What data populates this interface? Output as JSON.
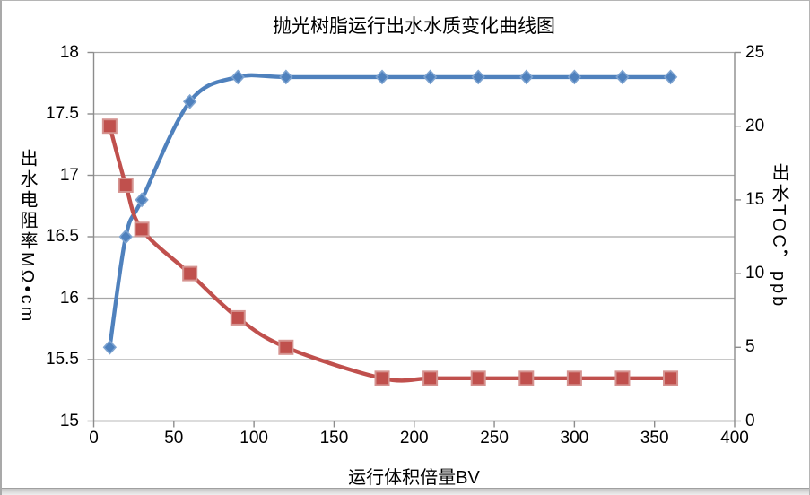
{
  "chart_data": {
    "type": "line",
    "title": "抛光树脂运行出水水质变化曲线图",
    "xlabel": "运行体积倍量BV",
    "ylabel_left": "出水电阻率MΩ•cm",
    "ylabel_right": "出水TOC，ppb",
    "x": [
      10,
      20,
      30,
      60,
      90,
      120,
      180,
      210,
      240,
      270,
      300,
      330,
      360
    ],
    "series": [
      {
        "name": "出水电阻率MΩ•cm",
        "axis": "left",
        "color": "#4F81BD",
        "marker": "diamond",
        "marker_stroke": "#7DA3D0",
        "values": [
          15.6,
          16.5,
          16.8,
          17.6,
          17.8,
          17.8,
          17.8,
          17.8,
          17.8,
          17.8,
          17.8,
          17.8,
          17.8
        ]
      },
      {
        "name": "出水TOC，ppb",
        "axis": "right",
        "color": "#C0504D",
        "marker": "square",
        "marker_stroke": "#D59390",
        "values": [
          20,
          16,
          13,
          10,
          7,
          5,
          2.9,
          2.9,
          2.9,
          2.9,
          2.9,
          2.9,
          2.9
        ]
      }
    ],
    "x_ticks": [
      "0",
      "50",
      "100",
      "150",
      "200",
      "250",
      "300",
      "350",
      "400"
    ],
    "y_ticks_left": [
      "18",
      "17.5",
      "17",
      "16.5",
      "16",
      "15.5",
      "15"
    ],
    "y_ticks_right": [
      "25",
      "20",
      "15",
      "10",
      "5",
      "0"
    ],
    "xlim": [
      0,
      400
    ],
    "ylim_left": [
      15,
      18
    ],
    "ylim_right": [
      0,
      25
    ],
    "grid": "horizontal",
    "legend": "none",
    "smoothed": true
  },
  "colors": {
    "background": "#FFFFFF",
    "text": "#000000",
    "axis": "#8C8C8C",
    "gridline": "#A6A6A6"
  }
}
